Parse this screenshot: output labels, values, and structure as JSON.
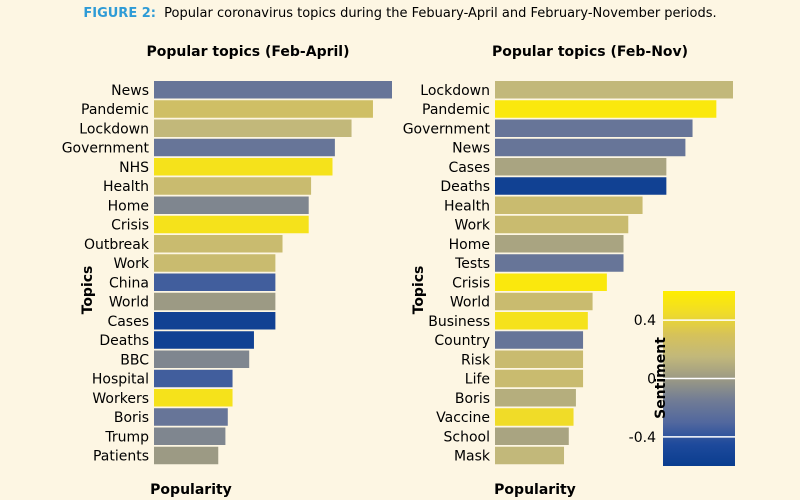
{
  "figure": {
    "label": "FIGURE 2:",
    "caption": "Popular coronavirus topics during the Febuary-April and February-November periods.",
    "label_color": "#2e9bd6",
    "background": "#fdf6e3"
  },
  "chart_data": [
    {
      "type": "bar",
      "orientation": "horizontal",
      "title": "Popular topics (Feb-April)",
      "xlabel": "Popularity",
      "ylabel": "Topics",
      "value_scale": "relative popularity (0–1, largest bar = 1)",
      "categories": [
        "News",
        "Pandemic",
        "Lockdown",
        "Government",
        "NHS",
        "Health",
        "Home",
        "Crisis",
        "Outbreak",
        "Work",
        "China",
        "World",
        "Cases",
        "Deaths",
        "BBC",
        "Hospital",
        "Workers",
        "Boris",
        "Trump",
        "Patients"
      ],
      "values": [
        1.0,
        0.92,
        0.83,
        0.76,
        0.75,
        0.66,
        0.65,
        0.65,
        0.54,
        0.51,
        0.51,
        0.51,
        0.51,
        0.42,
        0.4,
        0.33,
        0.33,
        0.31,
        0.3,
        0.27
      ],
      "sentiment": [
        -0.2,
        0.25,
        0.15,
        -0.2,
        0.5,
        0.2,
        -0.1,
        0.5,
        0.2,
        0.2,
        -0.35,
        0.0,
        -0.55,
        -0.55,
        -0.1,
        -0.35,
        0.5,
        -0.2,
        -0.1,
        0.0
      ]
    },
    {
      "type": "bar",
      "orientation": "horizontal",
      "title": "Popular topics (Feb-Nov)",
      "xlabel": "Popularity",
      "ylabel": "Topics",
      "value_scale": "relative popularity (0–1, largest bar = 1)",
      "categories": [
        "Lockdown",
        "Pandemic",
        "Government",
        "News",
        "Cases",
        "Deaths",
        "Health",
        "Work",
        "Home",
        "Tests",
        "Crisis",
        "World",
        "Business",
        "Country",
        "Risk",
        "Life",
        "Boris",
        "Vaccine",
        "School",
        "Mask"
      ],
      "values": [
        1.0,
        0.93,
        0.83,
        0.8,
        0.72,
        0.72,
        0.62,
        0.56,
        0.54,
        0.54,
        0.47,
        0.41,
        0.39,
        0.37,
        0.37,
        0.37,
        0.34,
        0.33,
        0.31,
        0.29
      ],
      "sentiment": [
        0.15,
        0.55,
        -0.2,
        -0.2,
        0.05,
        -0.55,
        0.2,
        0.2,
        0.05,
        -0.2,
        0.55,
        0.2,
        0.5,
        -0.2,
        0.2,
        0.2,
        0.1,
        0.45,
        0.05,
        0.15
      ]
    }
  ],
  "colorbar": {
    "label": "Sentiment",
    "ticks": [
      "0.4",
      "0",
      "-0.4"
    ],
    "tick_values": [
      0.4,
      0,
      -0.4
    ],
    "range": [
      -0.6,
      0.6
    ],
    "stops": [
      {
        "v": -0.6,
        "color": "#0a3d8f"
      },
      {
        "v": -0.45,
        "color": "#1e4a9c"
      },
      {
        "v": -0.3,
        "color": "#52689e"
      },
      {
        "v": -0.15,
        "color": "#717c95"
      },
      {
        "v": 0.0,
        "color": "#9c9a84"
      },
      {
        "v": 0.15,
        "color": "#c2b87a"
      },
      {
        "v": 0.3,
        "color": "#d6c25a"
      },
      {
        "v": 0.45,
        "color": "#f0dc28"
      },
      {
        "v": 0.6,
        "color": "#ffee00"
      }
    ]
  }
}
